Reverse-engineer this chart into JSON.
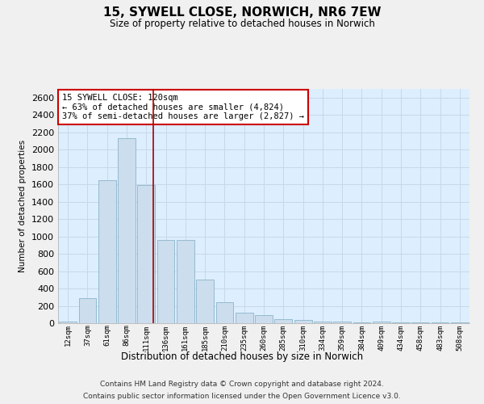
{
  "title1": "15, SYWELL CLOSE, NORWICH, NR6 7EW",
  "title2": "Size of property relative to detached houses in Norwich",
  "xlabel": "Distribution of detached houses by size in Norwich",
  "ylabel": "Number of detached properties",
  "categories": [
    "12sqm",
    "37sqm",
    "61sqm",
    "86sqm",
    "111sqm",
    "136sqm",
    "161sqm",
    "185sqm",
    "210sqm",
    "235sqm",
    "260sqm",
    "285sqm",
    "310sqm",
    "334sqm",
    "359sqm",
    "384sqm",
    "409sqm",
    "434sqm",
    "458sqm",
    "483sqm",
    "508sqm"
  ],
  "values": [
    20,
    290,
    1650,
    2130,
    1590,
    960,
    960,
    500,
    240,
    120,
    90,
    45,
    35,
    22,
    15,
    10,
    15,
    5,
    12,
    5,
    12
  ],
  "bar_color": "#ccdded",
  "bar_edge_color": "#8ab4cc",
  "vline_x": 4.36,
  "vline_color": "#aa0000",
  "annotation_text": "15 SYWELL CLOSE: 120sqm\n← 63% of detached houses are smaller (4,824)\n37% of semi-detached houses are larger (2,827) →",
  "annotation_box_color": "#ffffff",
  "annotation_box_edge": "#cc0000",
  "ylim": [
    0,
    2700
  ],
  "yticks": [
    0,
    200,
    400,
    600,
    800,
    1000,
    1200,
    1400,
    1600,
    1800,
    2000,
    2200,
    2400,
    2600
  ],
  "grid_color": "#c8d8e8",
  "background_color": "#ddeeff",
  "fig_background": "#f0f0f0",
  "footer1": "Contains HM Land Registry data © Crown copyright and database right 2024.",
  "footer2": "Contains public sector information licensed under the Open Government Licence v3.0."
}
